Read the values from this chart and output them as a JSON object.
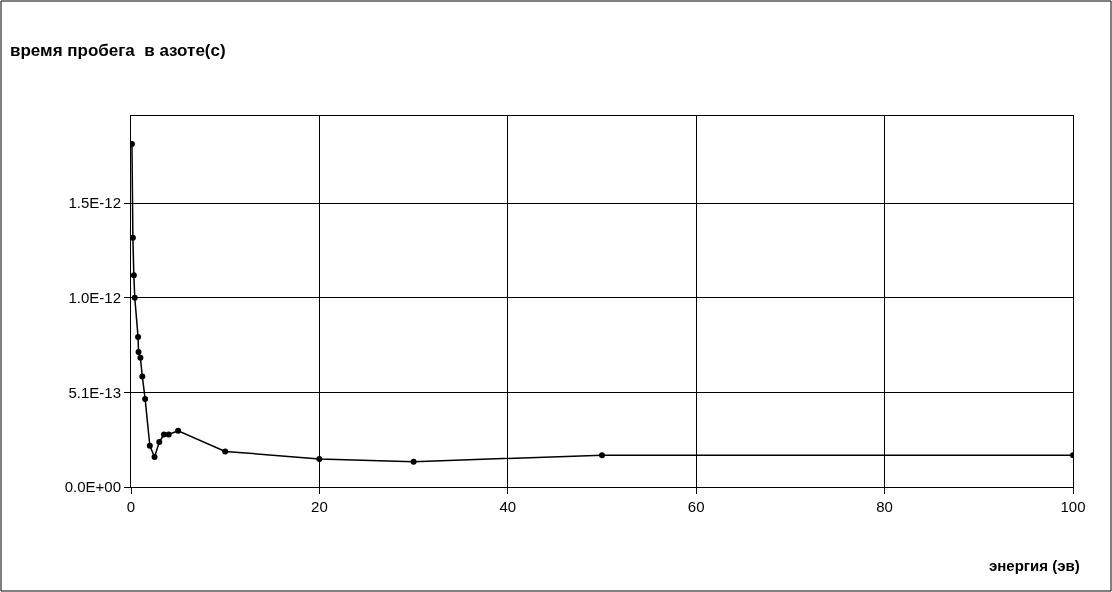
{
  "chart_data": {
    "type": "line",
    "title": "время пробега  в азоте(с)",
    "xlabel": "энергия (эв)",
    "x": [
      0.1,
      0.2,
      0.3,
      0.4,
      0.75,
      0.8,
      1.0,
      1.2,
      1.5,
      2.0,
      2.5,
      3.0,
      3.5,
      4.0,
      5.0,
      10,
      20,
      30,
      50,
      100
    ],
    "series": [
      {
        "color": "#000000",
        "values": [
          1.83e-12,
          1.33e-12,
          1.13e-12,
          1.01e-12,
          8e-13,
          7.2e-13,
          6.9e-13,
          5.9e-13,
          4.7e-13,
          2.2e-13,
          1.6e-13,
          2.4e-13,
          2.8e-13,
          2.8e-13,
          3e-13,
          1.9e-13,
          1.5e-13,
          1.35e-13,
          1.7e-13,
          1.7e-13
        ]
      }
    ],
    "xlim": [
      0,
      100
    ],
    "xticks": [
      0,
      20,
      40,
      60,
      80,
      100
    ],
    "ylim": [
      0,
      1.98e-12
    ],
    "yticks": [
      {
        "value": 0,
        "label": "0.0E+00"
      },
      {
        "value": 5.05e-13,
        "label": "5.1E-13"
      },
      {
        "value": 1.01e-12,
        "label": "1.0E-12"
      },
      {
        "value": 1.515e-12,
        "label": "1.5E-12"
      }
    ],
    "grid": true,
    "marker": "circle",
    "line_style": "solid"
  }
}
